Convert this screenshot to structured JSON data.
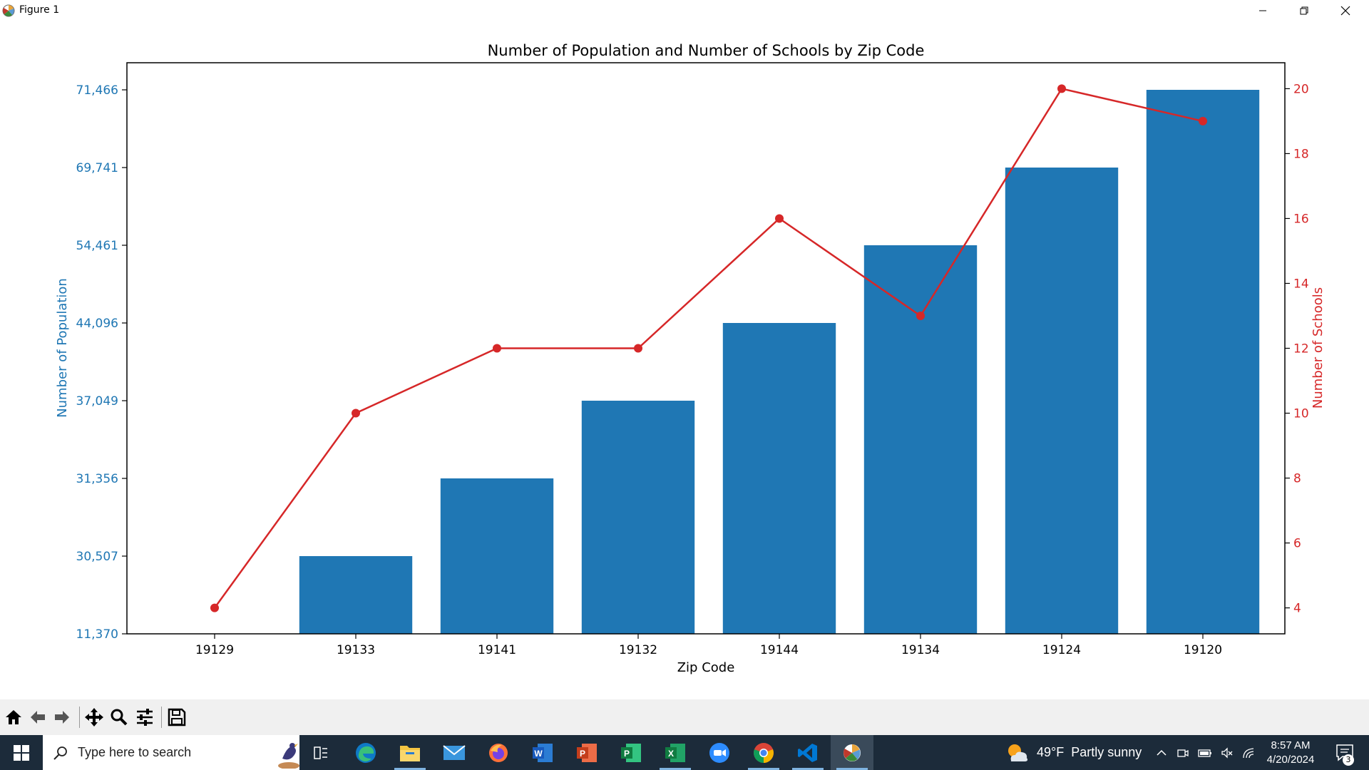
{
  "window": {
    "title": "Figure 1",
    "controls": {
      "minimize": "minimize",
      "maximize": "restore",
      "close": "close"
    }
  },
  "toolbar": {
    "buttons": [
      {
        "name": "home-button",
        "icon": "home-icon"
      },
      {
        "name": "back-button",
        "icon": "arrow-left-icon"
      },
      {
        "name": "forward-button",
        "icon": "arrow-right-icon"
      },
      {
        "name": "pan-button",
        "icon": "move-icon"
      },
      {
        "name": "zoom-button",
        "icon": "magnifier-icon"
      },
      {
        "name": "configure-subplots-button",
        "icon": "sliders-icon"
      },
      {
        "name": "save-button",
        "icon": "floppy-icon"
      }
    ]
  },
  "taskbar": {
    "search_placeholder": "Type here to search",
    "weather": {
      "temp": "49°F",
      "condition": "Partly sunny"
    },
    "clock": {
      "time": "8:57 AM",
      "date": "4/20/2024"
    },
    "notification_count": "3",
    "apps": [
      "task-view",
      "edge",
      "file-explorer",
      "mail",
      "firefox",
      "word",
      "powerpoint",
      "project",
      "excel",
      "zoom",
      "chrome",
      "vscode",
      "matplotlib-figure"
    ]
  },
  "chart_data": {
    "type": "bar",
    "title": "Number of Population and Number of Schools by Zip Code",
    "xlabel": "Zip Code",
    "ylabel": "Number of Population",
    "ylabel_right": "Number of Schools",
    "categories": [
      "19129",
      "19133",
      "19141",
      "19132",
      "19144",
      "19134",
      "19124",
      "19120"
    ],
    "left_axis_ticks": [
      "11,370",
      "30,507",
      "31,356",
      "37,049",
      "44,096",
      "54,461",
      "69,741",
      "71,466"
    ],
    "right_axis_ticks": [
      "4",
      "6",
      "8",
      "10",
      "12",
      "14",
      "16",
      "18",
      "20"
    ],
    "right_ylim": [
      3.2,
      20.8
    ],
    "series": [
      {
        "name": "Number of Population",
        "type": "bar",
        "values": [
          11370,
          30507,
          31356,
          37049,
          44096,
          54461,
          69741,
          71466
        ],
        "color": "#1f77b4"
      },
      {
        "name": "Number of Schools",
        "type": "line",
        "values": [
          4,
          10,
          12,
          12,
          16,
          13,
          20,
          19
        ],
        "color": "#d62728"
      }
    ],
    "grid": false
  }
}
